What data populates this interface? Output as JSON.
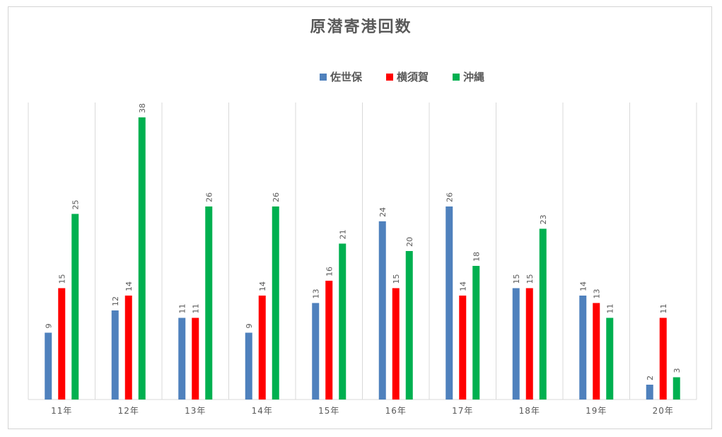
{
  "chart_data": {
    "type": "bar",
    "title": "原潜寄港回数",
    "categories": [
      "11年",
      "12年",
      "13年",
      "14年",
      "15年",
      "16年",
      "17年",
      "18年",
      "19年",
      "20年"
    ],
    "series": [
      {
        "name": "佐世保",
        "color": "#4f81bd",
        "values": [
          9,
          12,
          11,
          9,
          13,
          24,
          26,
          15,
          14,
          2
        ]
      },
      {
        "name": "横須賀",
        "color": "#ff0000",
        "values": [
          15,
          14,
          11,
          14,
          16,
          15,
          14,
          15,
          13,
          11
        ]
      },
      {
        "name": "沖縄",
        "color": "#00b050",
        "values": [
          25,
          38,
          26,
          26,
          21,
          20,
          18,
          23,
          11,
          3
        ]
      }
    ],
    "ylim": [
      0,
      40
    ],
    "grid": "vertical category separators",
    "legend_position": "top"
  }
}
